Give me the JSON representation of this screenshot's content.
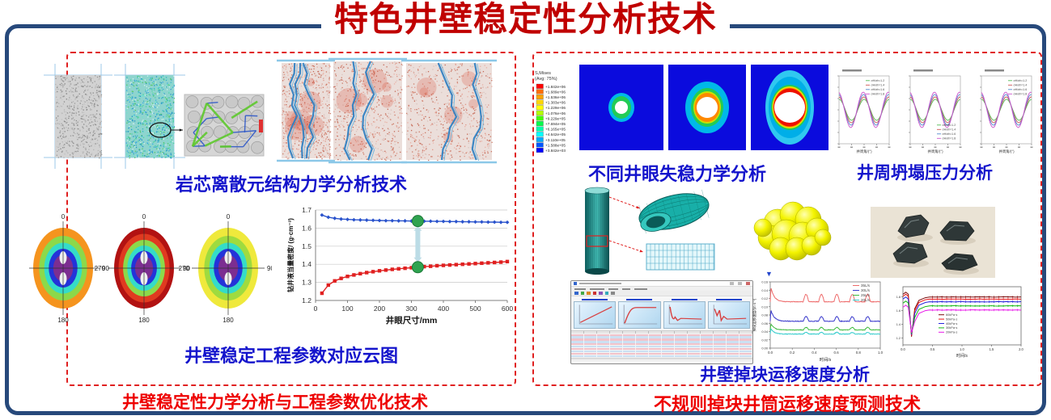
{
  "title": "特色井壁稳定性分析技术",
  "accent_colors": {
    "frame_blue": "#27497B",
    "dashed_red": "#E02020",
    "caption_blue": "#1414CC",
    "caption_red": "#EE0000",
    "title_red": "#C00000"
  },
  "left_panel": {
    "caption_core": "岩芯离散元结构力学分析技术",
    "caption_cloud": "井壁稳定工程参数对应云图",
    "caption_bottom": "井壁稳定性力学分析与工程参数优化技术",
    "polar_plots": {
      "angle_labels": [
        "0",
        "90",
        "180",
        "270"
      ],
      "ring_colors": [
        [
          "#F5941E",
          "#8CD94A",
          "#35DCC8",
          "#2433D9",
          "#7C2E91"
        ],
        [
          "#B21212",
          "#E03A20",
          "#8CD94A",
          "#35DCC8",
          "#2433D9",
          "#7C2E91"
        ],
        [
          "#EFE93C",
          "#9FDB3F",
          "#35DCC8",
          "#2433D9",
          "#7C2E91"
        ]
      ]
    }
  },
  "right_panel": {
    "caption_fea": "不同井眼失稳力学分析",
    "caption_collapse": "井周坍塌压力分析",
    "caption_debris": "井壁掉块运移速度分析",
    "caption_bottom": "不规则掉块井筒运移速度预测技术",
    "fea_legend": {
      "line1": "S,Mises",
      "line2": "(Avg: 75%)",
      "labels": [
        "+1.842e+06",
        "+1.689e+06",
        "+1.536e+06",
        "+1.383e+06",
        "+1.229e+06",
        "+1.076e+06",
        "+9.229e+05",
        "+7.694e+05",
        "+6.165e+05",
        "+4.642e+05",
        "+3.110e+05",
        "+1.588e+05",
        "+3.842e+03"
      ],
      "colors": [
        "#FF0000",
        "#FF6E00",
        "#FFA300",
        "#FFD500",
        "#FFFF00",
        "#B4FF00",
        "#46FF00",
        "#00FF4B",
        "#00FFAA",
        "#00FFFF",
        "#00AAFF",
        "#0055FF",
        "#0000FF"
      ]
    },
    "software": {
      "chart_shapes": [
        "rise",
        "riseflat",
        "dipflat",
        "spikeflat"
      ],
      "table_rows": 10,
      "table_cols": 13,
      "row_colors": [
        "#F2C3CA",
        "#CBE0F2"
      ]
    }
  },
  "chart_data": [
    {
      "id": "density",
      "type": "line",
      "xlabel": "井眼尺寸/mm",
      "ylabel": "钻井液当量密度/ (g·cm⁻³)",
      "xlim": [
        0,
        600
      ],
      "ylim": [
        1.2,
        1.7
      ],
      "xticks": [
        0,
        100,
        200,
        300,
        400,
        500,
        600
      ],
      "yticks": [
        1.2,
        1.3,
        1.4,
        1.5,
        1.6,
        1.7
      ],
      "x_start": 20,
      "x_step": 20,
      "series": [
        {
          "name": "upper-curve-blue",
          "color": "#2952CC",
          "marker": "diamond",
          "values": [
            1.672,
            1.66,
            1.654,
            1.65,
            1.648,
            1.646,
            1.645,
            1.644,
            1.643,
            1.642,
            1.641,
            1.641,
            1.64,
            1.64,
            1.639,
            1.639,
            1.638,
            1.638,
            1.637,
            1.637,
            1.636,
            1.636,
            1.635,
            1.635,
            1.634,
            1.634,
            1.633,
            1.633,
            1.632,
            1.632
          ]
        },
        {
          "name": "lower-curve-red",
          "color": "#E02020",
          "marker": "square",
          "values": [
            1.24,
            1.285,
            1.308,
            1.322,
            1.333,
            1.341,
            1.348,
            1.354,
            1.359,
            1.364,
            1.368,
            1.372,
            1.375,
            1.378,
            1.381,
            1.384,
            1.387,
            1.389,
            1.392,
            1.394,
            1.396,
            1.398,
            1.4,
            1.402,
            1.404,
            1.406,
            1.408,
            1.41,
            1.412,
            1.415
          ]
        }
      ],
      "highlight": {
        "x": 320,
        "upper": 1.639,
        "lower": 1.384,
        "circle_color": "#2FA350",
        "arrow_color": "#BCDCE6"
      }
    },
    {
      "id": "collapse_small_multiples",
      "type": "line",
      "count": 3,
      "xlabel": "井周角/(°)",
      "x_range": [
        0,
        360
      ],
      "legend": [
        "σH/σh=1.2",
        "σH/σh=1.4",
        "σH/σh=1.6",
        "σH/σh=1.8"
      ],
      "colors": [
        "#55BB55",
        "#CC5555",
        "#5588CC",
        "#CC55CC"
      ],
      "amplitudes": [
        13,
        16,
        19,
        22
      ],
      "legend_pos": [
        "tr",
        "br",
        "tr"
      ]
    },
    {
      "id": "debris_velocity",
      "type": "line",
      "xlabel": "时间/s",
      "ylabel": "掉块运移速度/(m·s⁻¹)",
      "xticks": [
        0,
        0.2,
        0.4,
        0.6,
        0.8,
        1.0
      ],
      "yticks": [
        0,
        0.02,
        0.04,
        0.06,
        0.08,
        0.1,
        0.12,
        0.14,
        0.16
      ],
      "legend": [
        "35L/s",
        "30L/s",
        "25L/s",
        "20L/s"
      ],
      "colors": [
        "#EE6A6A",
        "#3A3ACC",
        "#3FBB3F",
        "#35CCCC"
      ],
      "levels": [
        0.112,
        0.065,
        0.044,
        0.034
      ],
      "peaks": [
        0.155,
        0.098,
        0.062,
        0.05
      ],
      "bump_x": [
        0.3,
        0.44,
        0.58,
        0.72,
        0.86
      ],
      "bump_h": [
        0.018,
        0.011,
        0.006,
        0.004
      ]
    },
    {
      "id": "migration_viscosity",
      "type": "line",
      "xlabel": "时间/s",
      "xticks": [
        0,
        0.5,
        1.0,
        1.5,
        2.0
      ],
      "yticks": [
        1.2,
        1.4,
        1.6,
        1.8
      ],
      "ylim": [
        1.1,
        1.95
      ],
      "legend": [
        "60kPa·s",
        "50kPa·s",
        "40kPa·s",
        "30kPa·s",
        "20kPa·s"
      ],
      "colors": [
        "#7B0A0A",
        "#E81212",
        "#2424DD",
        "#16B816",
        "#E816E8"
      ],
      "plateaus": [
        1.8,
        1.77,
        1.73,
        1.67,
        1.61
      ],
      "dips": [
        1.22,
        1.235,
        1.25,
        1.265,
        1.28
      ],
      "dip_x": 0.145
    }
  ]
}
